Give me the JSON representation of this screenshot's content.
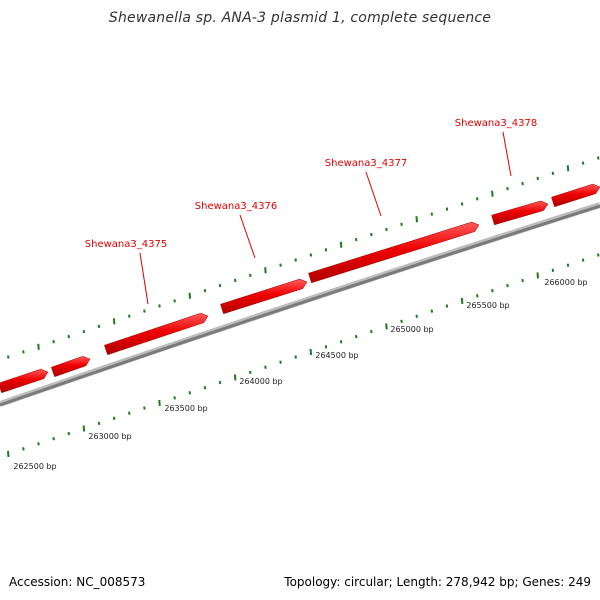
{
  "title": "Shewanella sp. ANA-3 plasmid 1, complete sequence",
  "footer": {
    "accession": "Accession: NC_008573",
    "topology": "Topology: circular; Length: 278,942 bp; Genes: 249"
  },
  "colors": {
    "gene": "#e00000",
    "tick": "#1e7a1e",
    "backbone": "#8a8a8a",
    "label": "#e00000"
  },
  "genes": [
    {
      "name": "Shewana3_4375"
    },
    {
      "name": "Shewana3_4376"
    },
    {
      "name": "Shewana3_4377"
    },
    {
      "name": "Shewana3_4378"
    }
  ],
  "bp_labels": [
    "262500 bp",
    "263000 bp",
    "263500 bp",
    "264000 bp",
    "264500 bp",
    "265000 bp",
    "265500 bp",
    "266000 bp"
  ]
}
